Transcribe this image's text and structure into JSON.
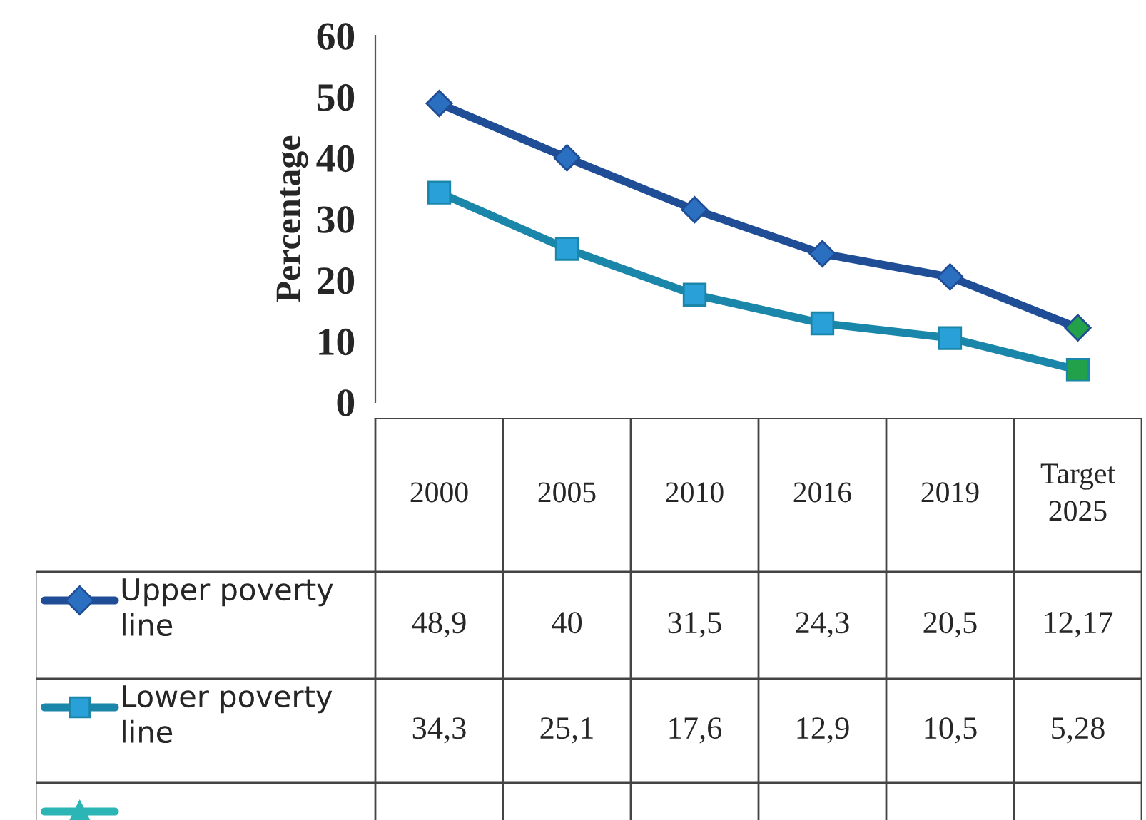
{
  "chart_data": {
    "type": "line",
    "ylabel": "Percentage",
    "categories": [
      "2000",
      "2005",
      "2010",
      "2016",
      "2019",
      "Target 2025"
    ],
    "series": [
      {
        "name": "Upper poverty line",
        "color": "#1f4e96",
        "marker": "diamond",
        "colors": [
          "#2a6fc0",
          "#2a6fc0",
          "#2a6fc0",
          "#2a6fc0",
          "#2a6fc0",
          "#22a04a"
        ],
        "values": [
          48.9,
          40,
          31.5,
          24.3,
          20.5,
          12.17
        ],
        "value_labels": [
          "48,9",
          "40",
          "31,5",
          "24,3",
          "20,5",
          "12,17"
        ]
      },
      {
        "name": "Lower poverty line",
        "color": "#1a86aa",
        "marker": "square",
        "colors": [
          "#2aa0d8",
          "#2aa0d8",
          "#2aa0d8",
          "#2aa0d8",
          "#2aa0d8",
          "#22a04a"
        ],
        "values": [
          34.3,
          25.1,
          17.6,
          12.9,
          10.5,
          5.28
        ],
        "value_labels": [
          "34,3",
          "25,1",
          "17,6",
          "12,9",
          "10,5",
          "5,28"
        ]
      },
      {
        "color": "#2bb5b5",
        "marker": "triangle",
        "values": [
          null,
          null,
          null,
          null,
          null,
          null
        ]
      }
    ],
    "ylim": [
      0,
      60
    ],
    "yticks": [
      0,
      10,
      20,
      30,
      40,
      50,
      60
    ],
    "grid": false,
    "legend": "bottom",
    "data_labels": true
  }
}
